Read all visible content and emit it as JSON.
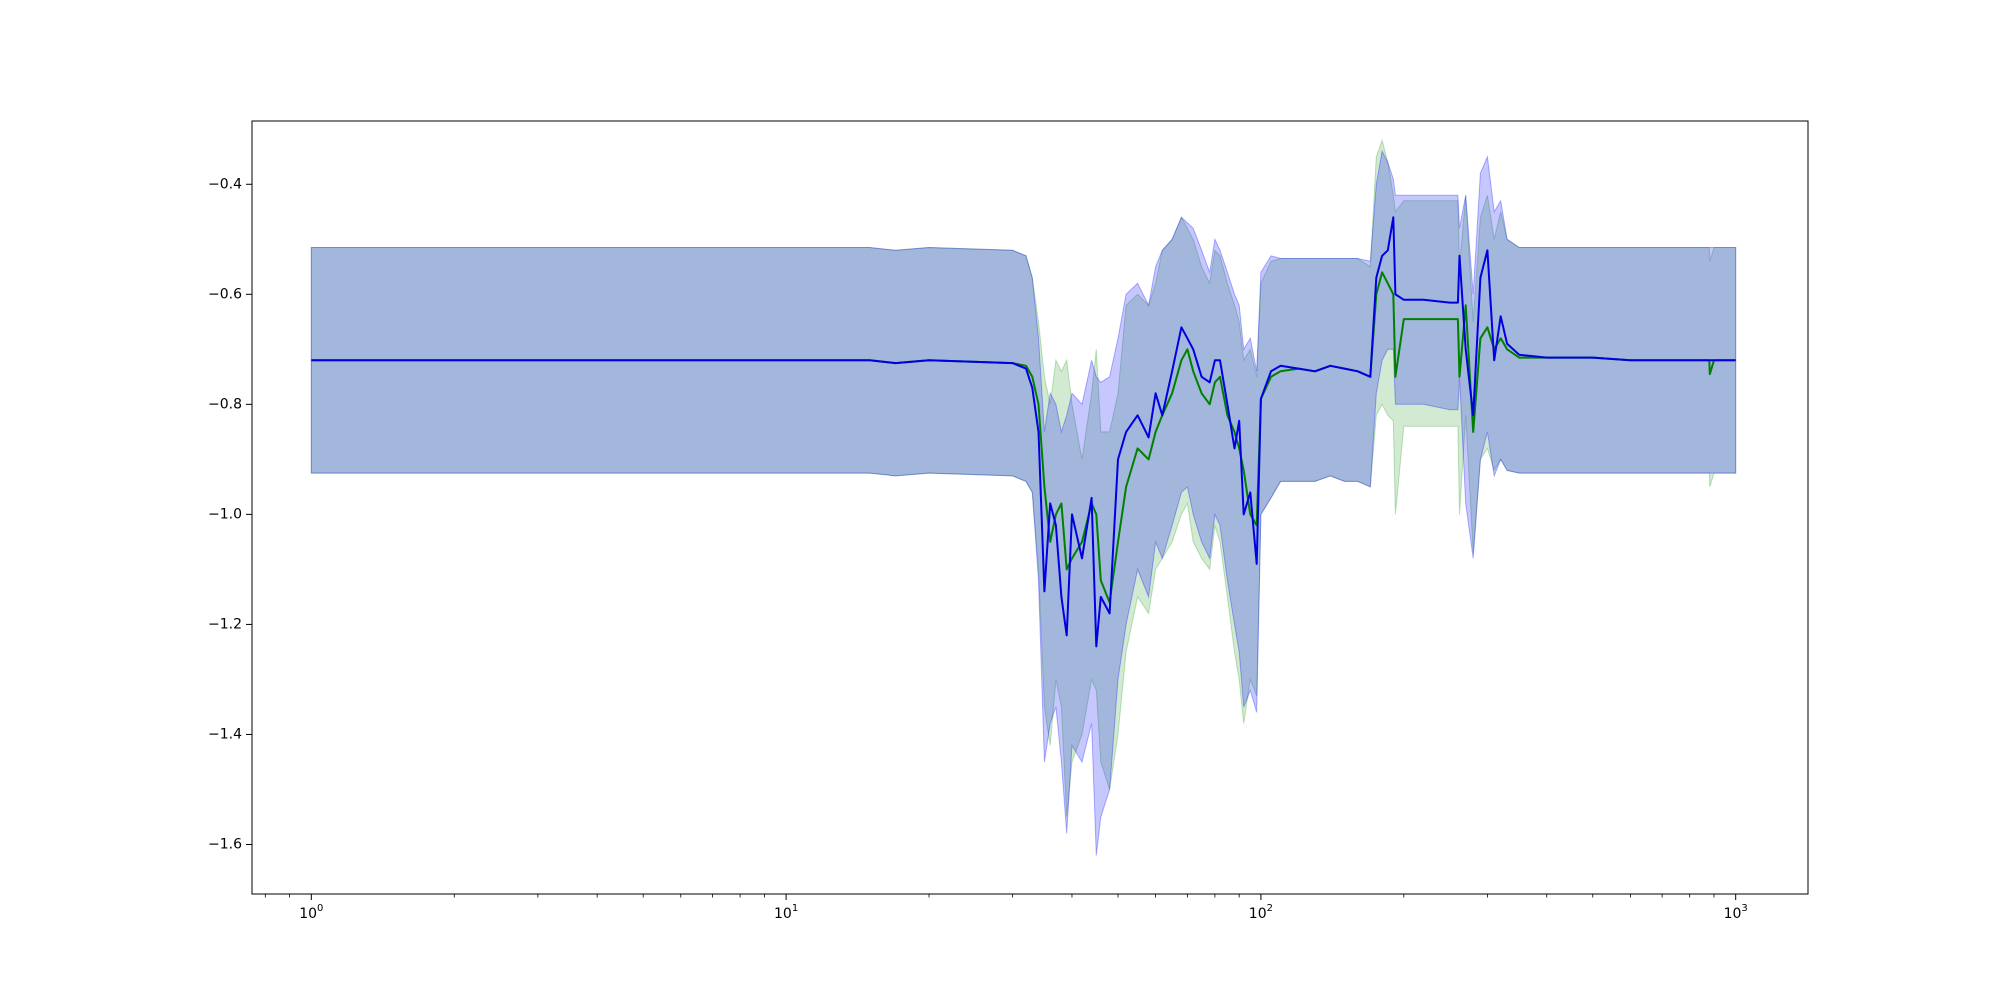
{
  "chart_data": {
    "type": "line",
    "title": "",
    "xlabel": "",
    "ylabel": "",
    "xscale": "log",
    "xlim": [
      0.75,
      1420
    ],
    "ylim": [
      -1.69,
      -0.285
    ],
    "grid": false,
    "legend": "none",
    "x_ticks": [
      {
        "value": 1,
        "base": "10",
        "exp": "0"
      },
      {
        "value": 10,
        "base": "10",
        "exp": "1"
      },
      {
        "value": 100,
        "base": "10",
        "exp": "2"
      },
      {
        "value": 1000,
        "base": "10",
        "exp": "3"
      }
    ],
    "y_ticks": [
      {
        "value": -0.4,
        "label": "−0.4"
      },
      {
        "value": -0.6,
        "label": "−0.6"
      },
      {
        "value": -0.8,
        "label": "−0.8"
      },
      {
        "value": -1.0,
        "label": "−1.0"
      },
      {
        "value": -1.2,
        "label": "−1.2"
      },
      {
        "value": -1.4,
        "label": "−1.4"
      },
      {
        "value": -1.6,
        "label": "−1.6"
      }
    ],
    "series": [
      {
        "color": "#008000",
        "band_color": "#2ca02c",
        "x": [
          1,
          5,
          10,
          15,
          17,
          20,
          30,
          32,
          33,
          34,
          35,
          36,
          37,
          38,
          39,
          40,
          42,
          44,
          45,
          46,
          48,
          50,
          52,
          55,
          58,
          60,
          62,
          65,
          68,
          70,
          72,
          75,
          78,
          80,
          82,
          85,
          88,
          90,
          92,
          95,
          98,
          100,
          105,
          110,
          120,
          130,
          140,
          150,
          160,
          170,
          175,
          180,
          185,
          190,
          192,
          200,
          220,
          250,
          260,
          262,
          270,
          280,
          290,
          300,
          310,
          320,
          330,
          350,
          400,
          500,
          600,
          800,
          880,
          882,
          900,
          1000
        ],
        "y": [
          -0.72,
          -0.72,
          -0.72,
          -0.72,
          -0.725,
          -0.72,
          -0.725,
          -0.73,
          -0.75,
          -0.8,
          -0.95,
          -1.05,
          -1.0,
          -0.98,
          -1.1,
          -1.08,
          -1.05,
          -0.98,
          -1.0,
          -1.12,
          -1.16,
          -1.05,
          -0.95,
          -0.88,
          -0.9,
          -0.85,
          -0.82,
          -0.78,
          -0.72,
          -0.7,
          -0.74,
          -0.78,
          -0.8,
          -0.76,
          -0.75,
          -0.82,
          -0.85,
          -0.88,
          -0.92,
          -1.0,
          -1.02,
          -0.79,
          -0.75,
          -0.74,
          -0.735,
          -0.74,
          -0.73,
          -0.735,
          -0.74,
          -0.75,
          -0.6,
          -0.56,
          -0.58,
          -0.6,
          -0.75,
          -0.645,
          -0.645,
          -0.645,
          -0.645,
          -0.75,
          -0.62,
          -0.85,
          -0.68,
          -0.66,
          -0.7,
          -0.68,
          -0.7,
          -0.715,
          -0.715,
          -0.715,
          -0.72,
          -0.72,
          -0.72,
          -0.745,
          -0.72,
          -0.72
        ],
        "upper": [
          -0.515,
          -0.515,
          -0.515,
          -0.515,
          -0.52,
          -0.515,
          -0.52,
          -0.53,
          -0.57,
          -0.65,
          -0.75,
          -0.8,
          -0.72,
          -0.74,
          -0.72,
          -0.8,
          -0.9,
          -0.78,
          -0.7,
          -0.85,
          -0.85,
          -0.78,
          -0.62,
          -0.6,
          -0.62,
          -0.58,
          -0.52,
          -0.5,
          -0.46,
          -0.48,
          -0.5,
          -0.55,
          -0.58,
          -0.52,
          -0.53,
          -0.58,
          -0.62,
          -0.65,
          -0.72,
          -0.7,
          -0.75,
          -0.58,
          -0.54,
          -0.535,
          -0.535,
          -0.535,
          -0.535,
          -0.535,
          -0.535,
          -0.55,
          -0.35,
          -0.32,
          -0.36,
          -0.42,
          -0.45,
          -0.43,
          -0.43,
          -0.43,
          -0.43,
          -0.55,
          -0.42,
          -0.65,
          -0.46,
          -0.42,
          -0.5,
          -0.45,
          -0.5,
          -0.515,
          -0.515,
          -0.515,
          -0.515,
          -0.515,
          -0.515,
          -0.54,
          -0.515,
          -0.515
        ],
        "lower": [
          -0.925,
          -0.925,
          -0.925,
          -0.925,
          -0.93,
          -0.925,
          -0.93,
          -0.94,
          -0.96,
          -1.1,
          -1.35,
          -1.42,
          -1.3,
          -1.35,
          -1.55,
          -1.45,
          -1.4,
          -1.3,
          -1.32,
          -1.45,
          -1.5,
          -1.4,
          -1.25,
          -1.15,
          -1.18,
          -1.1,
          -1.08,
          -1.05,
          -1.0,
          -0.98,
          -1.05,
          -1.08,
          -1.1,
          -1.02,
          -1.05,
          -1.15,
          -1.25,
          -1.3,
          -1.38,
          -1.3,
          -1.33,
          -1.0,
          -0.97,
          -0.94,
          -0.94,
          -0.94,
          -0.93,
          -0.94,
          -0.94,
          -0.95,
          -0.82,
          -0.8,
          -0.82,
          -0.83,
          -1.0,
          -0.84,
          -0.84,
          -0.84,
          -0.84,
          -1.0,
          -0.82,
          -1.07,
          -0.9,
          -0.88,
          -0.92,
          -0.9,
          -0.92,
          -0.925,
          -0.925,
          -0.925,
          -0.925,
          -0.925,
          -0.925,
          -0.95,
          -0.925,
          -0.925
        ]
      },
      {
        "color": "#0000e0",
        "band_color": "#0000ff",
        "x": [
          1,
          5,
          10,
          15,
          17,
          20,
          30,
          32,
          33,
          34,
          35,
          36,
          37,
          38,
          39,
          40,
          42,
          44,
          45,
          46,
          48,
          50,
          52,
          55,
          58,
          60,
          62,
          65,
          68,
          70,
          72,
          75,
          78,
          80,
          82,
          85,
          88,
          90,
          92,
          95,
          98,
          100,
          105,
          110,
          120,
          130,
          140,
          150,
          160,
          170,
          175,
          180,
          185,
          190,
          192,
          200,
          220,
          250,
          260,
          262,
          270,
          280,
          290,
          300,
          310,
          320,
          330,
          350,
          400,
          500,
          600,
          800,
          880,
          882,
          900,
          1000
        ],
        "y": [
          -0.72,
          -0.72,
          -0.72,
          -0.72,
          -0.725,
          -0.72,
          -0.725,
          -0.735,
          -0.77,
          -0.85,
          -1.14,
          -0.98,
          -1.02,
          -1.15,
          -1.22,
          -1.0,
          -1.08,
          -0.97,
          -1.24,
          -1.15,
          -1.18,
          -0.9,
          -0.85,
          -0.82,
          -0.86,
          -0.78,
          -0.82,
          -0.74,
          -0.66,
          -0.68,
          -0.7,
          -0.75,
          -0.76,
          -0.72,
          -0.72,
          -0.8,
          -0.88,
          -0.83,
          -1.0,
          -0.96,
          -1.09,
          -0.79,
          -0.74,
          -0.73,
          -0.735,
          -0.74,
          -0.73,
          -0.735,
          -0.74,
          -0.75,
          -0.57,
          -0.53,
          -0.52,
          -0.46,
          -0.6,
          -0.61,
          -0.61,
          -0.615,
          -0.615,
          -0.53,
          -0.7,
          -0.82,
          -0.57,
          -0.52,
          -0.72,
          -0.64,
          -0.69,
          -0.71,
          -0.715,
          -0.715,
          -0.72,
          -0.72,
          -0.72,
          -0.72,
          -0.72,
          -0.72
        ],
        "upper": [
          -0.515,
          -0.515,
          -0.515,
          -0.515,
          -0.52,
          -0.515,
          -0.52,
          -0.53,
          -0.57,
          -0.68,
          -0.85,
          -0.78,
          -0.8,
          -0.85,
          -0.82,
          -0.78,
          -0.8,
          -0.72,
          -0.75,
          -0.76,
          -0.75,
          -0.68,
          -0.6,
          -0.58,
          -0.62,
          -0.55,
          -0.52,
          -0.5,
          -0.46,
          -0.47,
          -0.48,
          -0.52,
          -0.56,
          -0.5,
          -0.52,
          -0.56,
          -0.6,
          -0.62,
          -0.7,
          -0.68,
          -0.74,
          -0.56,
          -0.53,
          -0.535,
          -0.535,
          -0.535,
          -0.535,
          -0.535,
          -0.535,
          -0.54,
          -0.4,
          -0.34,
          -0.36,
          -0.39,
          -0.42,
          -0.42,
          -0.42,
          -0.42,
          -0.42,
          -0.48,
          -0.42,
          -0.6,
          -0.38,
          -0.35,
          -0.45,
          -0.43,
          -0.5,
          -0.515,
          -0.515,
          -0.515,
          -0.515,
          -0.515,
          -0.515,
          -0.515,
          -0.515,
          -0.515
        ],
        "lower": [
          -0.925,
          -0.925,
          -0.925,
          -0.925,
          -0.93,
          -0.925,
          -0.93,
          -0.94,
          -0.96,
          -1.12,
          -1.45,
          -1.38,
          -1.35,
          -1.45,
          -1.58,
          -1.42,
          -1.45,
          -1.38,
          -1.62,
          -1.55,
          -1.5,
          -1.3,
          -1.2,
          -1.1,
          -1.15,
          -1.05,
          -1.08,
          -1.02,
          -0.96,
          -0.95,
          -1.0,
          -1.05,
          -1.08,
          -1.0,
          -1.02,
          -1.12,
          -1.2,
          -1.25,
          -1.35,
          -1.32,
          -1.36,
          -1.0,
          -0.97,
          -0.94,
          -0.94,
          -0.94,
          -0.93,
          -0.94,
          -0.94,
          -0.95,
          -0.78,
          -0.72,
          -0.7,
          -0.7,
          -0.8,
          -0.8,
          -0.8,
          -0.81,
          -0.81,
          -0.75,
          -0.98,
          -1.08,
          -0.9,
          -0.85,
          -0.93,
          -0.9,
          -0.92,
          -0.925,
          -0.925,
          -0.925,
          -0.925,
          -0.925,
          -0.925,
          -0.925,
          -0.925,
          -0.925
        ]
      }
    ]
  }
}
